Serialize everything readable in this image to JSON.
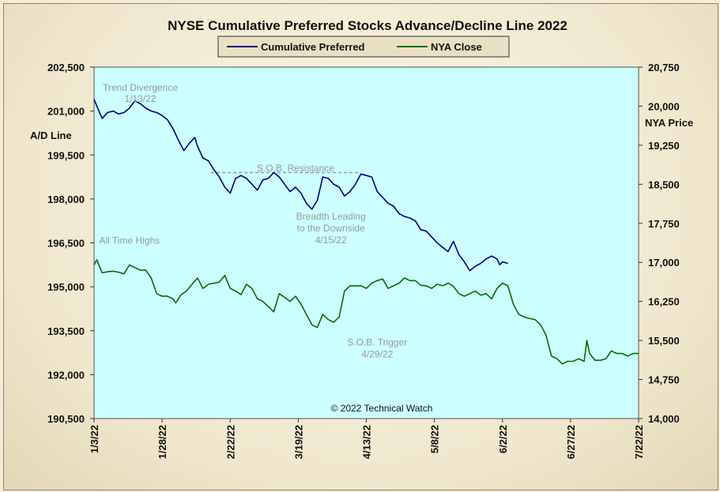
{
  "chart_data": {
    "type": "line",
    "title": "NYSE Cumulative  Preferred Stocks Advance/Decline  Line 2022",
    "y_left_label": "A/D Line",
    "y_right_label": "NYA Price",
    "copyright": "© 2022 Technical Watch",
    "background_color": "#ccffff",
    "legend_position": "top-center",
    "grid": false,
    "x_ticks": [
      "1/3/22",
      "1/28/22",
      "2/22/22",
      "3/19/22",
      "4/13/22",
      "5/8/22",
      "6/2/22",
      "6/27/22",
      "7/22/22"
    ],
    "y_left_ticks": [
      "202,500",
      "201,000",
      "199,500",
      "198,000",
      "196,500",
      "195,000",
      "193,500",
      "192,000",
      "190,500"
    ],
    "y_right_ticks": [
      "20,750",
      "20,000",
      "19,250",
      "18,500",
      "17,750",
      "17,000",
      "16,250",
      "15,500",
      "14,750",
      "14,000"
    ],
    "ylim_left": [
      190500,
      202500
    ],
    "ylim_right": [
      14000,
      20750
    ],
    "xlim_days": [
      0,
      200
    ],
    "series": [
      {
        "name": "Cumulative Preferred",
        "axis": "left",
        "color": "#000080",
        "points": [
          [
            0,
            201400
          ],
          [
            2,
            200950
          ],
          [
            3,
            200750
          ],
          [
            5,
            200950
          ],
          [
            7,
            201000
          ],
          [
            9,
            200900
          ],
          [
            11,
            200950
          ],
          [
            13,
            201100
          ],
          [
            15,
            201350
          ],
          [
            17,
            201250
          ],
          [
            19,
            201100
          ],
          [
            21,
            201000
          ],
          [
            23,
            200950
          ],
          [
            25,
            200850
          ],
          [
            27,
            200700
          ],
          [
            29,
            200400
          ],
          [
            31,
            200000
          ],
          [
            33,
            199650
          ],
          [
            35,
            199900
          ],
          [
            37,
            200100
          ],
          [
            38,
            199800
          ],
          [
            40,
            199400
          ],
          [
            42,
            199300
          ],
          [
            44,
            199000
          ],
          [
            46,
            198750
          ],
          [
            48,
            198400
          ],
          [
            50,
            198200
          ],
          [
            52,
            198700
          ],
          [
            54,
            198800
          ],
          [
            56,
            198700
          ],
          [
            58,
            198500
          ],
          [
            60,
            198300
          ],
          [
            62,
            198650
          ],
          [
            64,
            198700
          ],
          [
            66,
            198900
          ],
          [
            68,
            198750
          ],
          [
            70,
            198500
          ],
          [
            72,
            198250
          ],
          [
            74,
            198400
          ],
          [
            76,
            198200
          ],
          [
            78,
            197850
          ],
          [
            80,
            197650
          ],
          [
            82,
            197950
          ],
          [
            84,
            198750
          ],
          [
            86,
            198700
          ],
          [
            88,
            198500
          ],
          [
            90,
            198400
          ],
          [
            92,
            198100
          ],
          [
            94,
            198250
          ],
          [
            96,
            198500
          ],
          [
            98,
            198850
          ],
          [
            100,
            198800
          ],
          [
            102,
            198750
          ],
          [
            104,
            198250
          ],
          [
            106,
            198050
          ],
          [
            108,
            197850
          ],
          [
            110,
            197750
          ],
          [
            112,
            197500
          ],
          [
            114,
            197400
          ],
          [
            116,
            197350
          ],
          [
            118,
            197250
          ],
          [
            120,
            196950
          ],
          [
            122,
            196900
          ],
          [
            124,
            196700
          ],
          [
            126,
            196500
          ],
          [
            128,
            196350
          ],
          [
            130,
            196200
          ],
          [
            132,
            196550
          ],
          [
            134,
            196100
          ],
          [
            136,
            195850
          ],
          [
            138,
            195550
          ],
          [
            140,
            195700
          ],
          [
            142,
            195800
          ],
          [
            144,
            195950
          ],
          [
            146,
            196050
          ],
          [
            148,
            195950
          ],
          [
            149,
            195750
          ],
          [
            150,
            195850
          ],
          [
            152,
            195800
          ]
        ]
      },
      {
        "name": "NYA Close",
        "axis": "right",
        "color": "#007000",
        "points": [
          [
            0,
            16950
          ],
          [
            1,
            17050
          ],
          [
            3,
            16800
          ],
          [
            5,
            16820
          ],
          [
            7,
            16830
          ],
          [
            9,
            16810
          ],
          [
            11,
            16780
          ],
          [
            13,
            16950
          ],
          [
            15,
            16900
          ],
          [
            17,
            16850
          ],
          [
            19,
            16850
          ],
          [
            21,
            16700
          ],
          [
            23,
            16400
          ],
          [
            25,
            16350
          ],
          [
            27,
            16350
          ],
          [
            29,
            16300
          ],
          [
            30,
            16220
          ],
          [
            32,
            16380
          ],
          [
            34,
            16450
          ],
          [
            36,
            16580
          ],
          [
            38,
            16700
          ],
          [
            40,
            16500
          ],
          [
            42,
            16580
          ],
          [
            44,
            16600
          ],
          [
            46,
            16620
          ],
          [
            48,
            16750
          ],
          [
            50,
            16500
          ],
          [
            52,
            16450
          ],
          [
            54,
            16380
          ],
          [
            56,
            16580
          ],
          [
            58,
            16500
          ],
          [
            60,
            16300
          ],
          [
            62,
            16250
          ],
          [
            64,
            16150
          ],
          [
            66,
            16050
          ],
          [
            68,
            16400
          ],
          [
            70,
            16330
          ],
          [
            72,
            16250
          ],
          [
            74,
            16350
          ],
          [
            76,
            16200
          ],
          [
            78,
            16000
          ],
          [
            80,
            15800
          ],
          [
            82,
            15750
          ],
          [
            84,
            16000
          ],
          [
            86,
            15900
          ],
          [
            88,
            15850
          ],
          [
            90,
            15950
          ],
          [
            92,
            16450
          ],
          [
            94,
            16550
          ],
          [
            96,
            16550
          ],
          [
            98,
            16550
          ],
          [
            100,
            16500
          ],
          [
            102,
            16600
          ],
          [
            104,
            16650
          ],
          [
            106,
            16680
          ],
          [
            108,
            16500
          ],
          [
            110,
            16550
          ],
          [
            112,
            16600
          ],
          [
            114,
            16700
          ],
          [
            116,
            16650
          ],
          [
            118,
            16650
          ],
          [
            120,
            16560
          ],
          [
            122,
            16550
          ],
          [
            124,
            16500
          ],
          [
            126,
            16580
          ],
          [
            128,
            16550
          ],
          [
            130,
            16600
          ],
          [
            132,
            16540
          ],
          [
            134,
            16400
          ],
          [
            136,
            16350
          ],
          [
            138,
            16400
          ],
          [
            140,
            16450
          ],
          [
            142,
            16370
          ],
          [
            144,
            16400
          ],
          [
            146,
            16300
          ],
          [
            148,
            16500
          ],
          [
            150,
            16600
          ],
          [
            152,
            16550
          ],
          [
            154,
            16200
          ],
          [
            156,
            16000
          ],
          [
            158,
            15950
          ],
          [
            160,
            15920
          ],
          [
            162,
            15900
          ],
          [
            164,
            15800
          ],
          [
            166,
            15600
          ],
          [
            168,
            15200
          ],
          [
            170,
            15150
          ],
          [
            172,
            15050
          ],
          [
            174,
            15100
          ],
          [
            176,
            15100
          ],
          [
            178,
            15150
          ],
          [
            180,
            15100
          ],
          [
            181,
            15500
          ],
          [
            182,
            15250
          ],
          [
            184,
            15120
          ],
          [
            186,
            15120
          ],
          [
            188,
            15150
          ],
          [
            190,
            15300
          ],
          [
            192,
            15250
          ],
          [
            194,
            15250
          ],
          [
            196,
            15200
          ],
          [
            198,
            15250
          ],
          [
            200,
            15250
          ]
        ]
      }
    ],
    "annotations": [
      {
        "text": "Trend Divergence",
        "x": 17,
        "y_left": 201800
      },
      {
        "text": "1/13/22",
        "x": 17,
        "y_left": 201420
      },
      {
        "text": "S.O.B. Resistance",
        "x": 74,
        "y_left": 199050
      },
      {
        "text": "Breadth Leading",
        "x": 87,
        "y_left": 197400
      },
      {
        "text": "to the Downside",
        "x": 87,
        "y_left": 197000
      },
      {
        "text": "4/15/22",
        "x": 87,
        "y_left": 196600
      },
      {
        "text": "All Time Highs",
        "x": 13,
        "y_left": 196580
      },
      {
        "text": "S.O.B. Trigger",
        "x": 104,
        "y_left": 193100
      },
      {
        "text": "4/29/22",
        "x": 104,
        "y_left": 192700
      }
    ],
    "reference_lines": [
      {
        "label": "S.O.B. Resistance",
        "axis": "left",
        "value": 198900,
        "x_start": 43,
        "x_end": 98,
        "style": "dashed",
        "color": "#999999"
      }
    ]
  }
}
